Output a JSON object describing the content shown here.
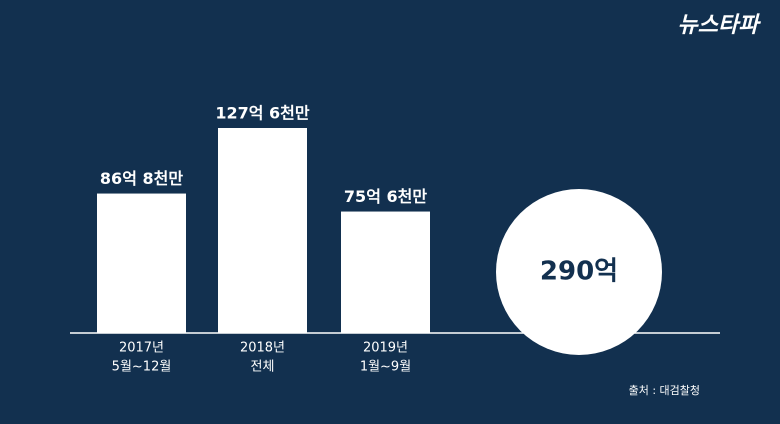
{
  "logo": "뉴스타파",
  "chart_data": {
    "type": "bar",
    "categories": [
      [
        "2017년",
        "5월~12월"
      ],
      [
        "2018년",
        "전체"
      ],
      [
        "2019년",
        "1월~9월"
      ]
    ],
    "values": [
      86.8,
      127.6,
      75.6
    ],
    "value_labels": [
      "86억 8천만",
      "127억 6천만",
      "75억 6천만"
    ],
    "color": "#ffffff",
    "total": {
      "value": 290,
      "label": "290억"
    },
    "source": "출처 : 대검찰청"
  }
}
